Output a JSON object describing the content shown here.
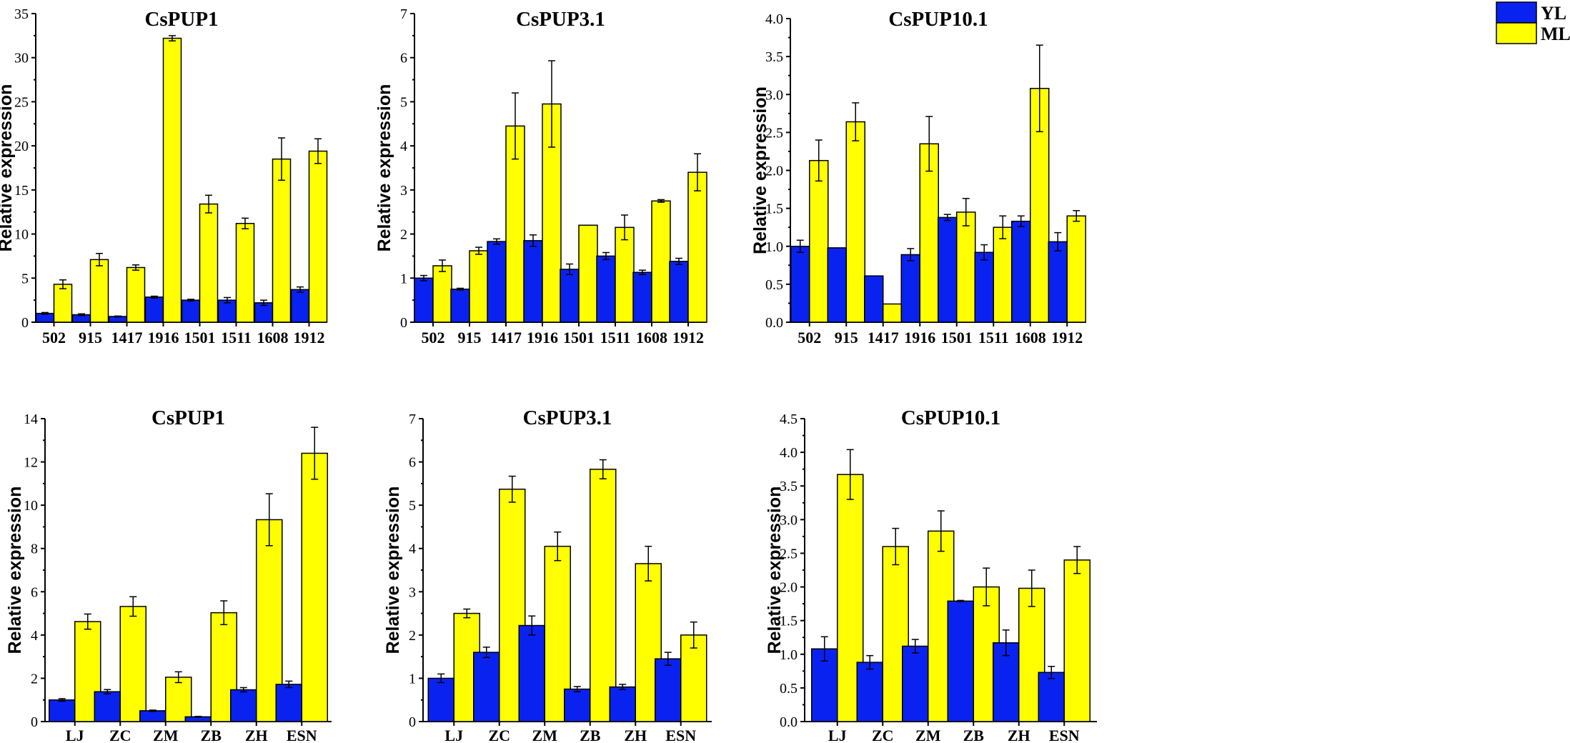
{
  "legend": [
    {
      "name": "YL",
      "color": "#0a22f0"
    },
    {
      "name": "ML",
      "color": "#ffff00"
    }
  ],
  "chart_data": [
    {
      "type": "bar",
      "title": "CsPUP1",
      "ylabel": "Relative expression",
      "xlabel": "",
      "ylim": [
        0,
        35
      ],
      "yticks": [
        0,
        5,
        10,
        15,
        20,
        25,
        30,
        35
      ],
      "tick_decimals": 0,
      "categories": [
        "502",
        "915",
        "1417",
        "1916",
        "1501",
        "1511",
        "1608",
        "1912"
      ],
      "series": [
        {
          "name": "YL",
          "values": [
            1.0,
            0.85,
            0.65,
            2.85,
            2.5,
            2.5,
            2.2,
            3.7
          ],
          "errors": [
            0.1,
            0.1,
            0.05,
            0.1,
            0.1,
            0.3,
            0.3,
            0.3
          ]
        },
        {
          "name": "ML",
          "values": [
            4.3,
            7.1,
            6.2,
            32.2,
            13.4,
            11.2,
            18.5,
            19.4
          ],
          "errors": [
            0.5,
            0.7,
            0.3,
            0.3,
            1.0,
            0.6,
            2.4,
            1.4
          ]
        }
      ]
    },
    {
      "type": "bar",
      "title": "CsPUP3.1",
      "ylabel": "Relative expression",
      "xlabel": "",
      "ylim": [
        0,
        7
      ],
      "yticks": [
        0,
        1,
        2,
        3,
        4,
        5,
        6,
        7
      ],
      "tick_decimals": 0,
      "categories": [
        "502",
        "915",
        "1417",
        "1916",
        "1501",
        "1511",
        "1608",
        "1912"
      ],
      "series": [
        {
          "name": "YL",
          "values": [
            1.0,
            0.75,
            1.83,
            1.85,
            1.2,
            1.5,
            1.13,
            1.38
          ],
          "errors": [
            0.06,
            0.02,
            0.06,
            0.13,
            0.12,
            0.08,
            0.05,
            0.07
          ]
        },
        {
          "name": "ML",
          "values": [
            1.28,
            1.62,
            4.45,
            4.95,
            2.2,
            2.15,
            2.75,
            3.4
          ],
          "errors": [
            0.13,
            0.08,
            0.75,
            0.98,
            0.0,
            0.28,
            0.03,
            0.42
          ]
        }
      ]
    },
    {
      "type": "bar",
      "title": "CsPUP10.1",
      "ylabel": "Relative expression",
      "xlabel": "",
      "ylim": [
        0,
        4
      ],
      "yticks": [
        0,
        0.5,
        1,
        1.5,
        2,
        2.5,
        3,
        3.5,
        4
      ],
      "tick_decimals": 1,
      "categories": [
        "502",
        "915",
        "1417",
        "1916",
        "1501",
        "1511",
        "1608",
        "1912"
      ],
      "series": [
        {
          "name": "YL",
          "values": [
            1.0,
            0.98,
            0.61,
            0.89,
            1.38,
            0.92,
            1.33,
            1.06
          ],
          "errors": [
            0.08,
            0.0,
            0.0,
            0.08,
            0.04,
            0.1,
            0.07,
            0.12
          ]
        },
        {
          "name": "ML",
          "values": [
            2.13,
            2.64,
            0.24,
            2.35,
            1.45,
            1.25,
            3.08,
            1.4
          ],
          "errors": [
            0.27,
            0.25,
            0.0,
            0.36,
            0.18,
            0.15,
            0.57,
            0.07
          ]
        }
      ]
    },
    {
      "type": "bar",
      "title": "CsPUP1",
      "ylabel": "Relative expression",
      "xlabel": "",
      "ylim": [
        0,
        14
      ],
      "yticks": [
        0,
        2,
        4,
        6,
        8,
        10,
        12,
        14
      ],
      "tick_decimals": 0,
      "categories": [
        "LJ",
        "ZC",
        "ZM",
        "ZB",
        "ZH",
        "ESN"
      ],
      "series": [
        {
          "name": "YL",
          "values": [
            1.0,
            1.38,
            0.5,
            0.22,
            1.47,
            1.72
          ],
          "errors": [
            0.06,
            0.1,
            0.03,
            0.02,
            0.1,
            0.15
          ]
        },
        {
          "name": "ML",
          "values": [
            4.62,
            5.32,
            2.05,
            5.03,
            9.33,
            12.4
          ],
          "errors": [
            0.35,
            0.45,
            0.25,
            0.55,
            1.2,
            1.2
          ]
        }
      ]
    },
    {
      "type": "bar",
      "title": "CsPUP3.1",
      "ylabel": "Relative expression",
      "xlabel": "",
      "ylim": [
        0,
        7
      ],
      "yticks": [
        0,
        1,
        2,
        3,
        4,
        5,
        6,
        7
      ],
      "tick_decimals": 0,
      "categories": [
        "LJ",
        "ZC",
        "ZM",
        "ZB",
        "ZH",
        "ESN"
      ],
      "series": [
        {
          "name": "YL",
          "values": [
            1.0,
            1.6,
            2.22,
            0.75,
            0.8,
            1.45
          ],
          "errors": [
            0.1,
            0.12,
            0.22,
            0.06,
            0.06,
            0.15
          ]
        },
        {
          "name": "ML",
          "values": [
            2.5,
            5.37,
            4.05,
            5.83,
            3.65,
            2.0
          ],
          "errors": [
            0.1,
            0.3,
            0.33,
            0.22,
            0.4,
            0.3
          ]
        }
      ]
    },
    {
      "type": "bar",
      "title": "CsPUP10.1",
      "ylabel": "Relative expression",
      "xlabel": "",
      "ylim": [
        0,
        4.5
      ],
      "yticks": [
        0,
        0.5,
        1,
        1.5,
        2,
        2.5,
        3,
        3.5,
        4,
        4.5
      ],
      "tick_decimals": 1,
      "categories": [
        "LJ",
        "ZC",
        "ZM",
        "ZB",
        "ZH",
        "ESN"
      ],
      "series": [
        {
          "name": "YL",
          "values": [
            1.08,
            0.88,
            1.12,
            1.79,
            1.17,
            0.73
          ],
          "errors": [
            0.18,
            0.1,
            0.1,
            0.01,
            0.19,
            0.09
          ]
        },
        {
          "name": "ML",
          "values": [
            3.67,
            2.6,
            2.83,
            2.0,
            1.98,
            2.4
          ],
          "errors": [
            0.37,
            0.27,
            0.3,
            0.28,
            0.27,
            0.2
          ]
        }
      ]
    }
  ]
}
